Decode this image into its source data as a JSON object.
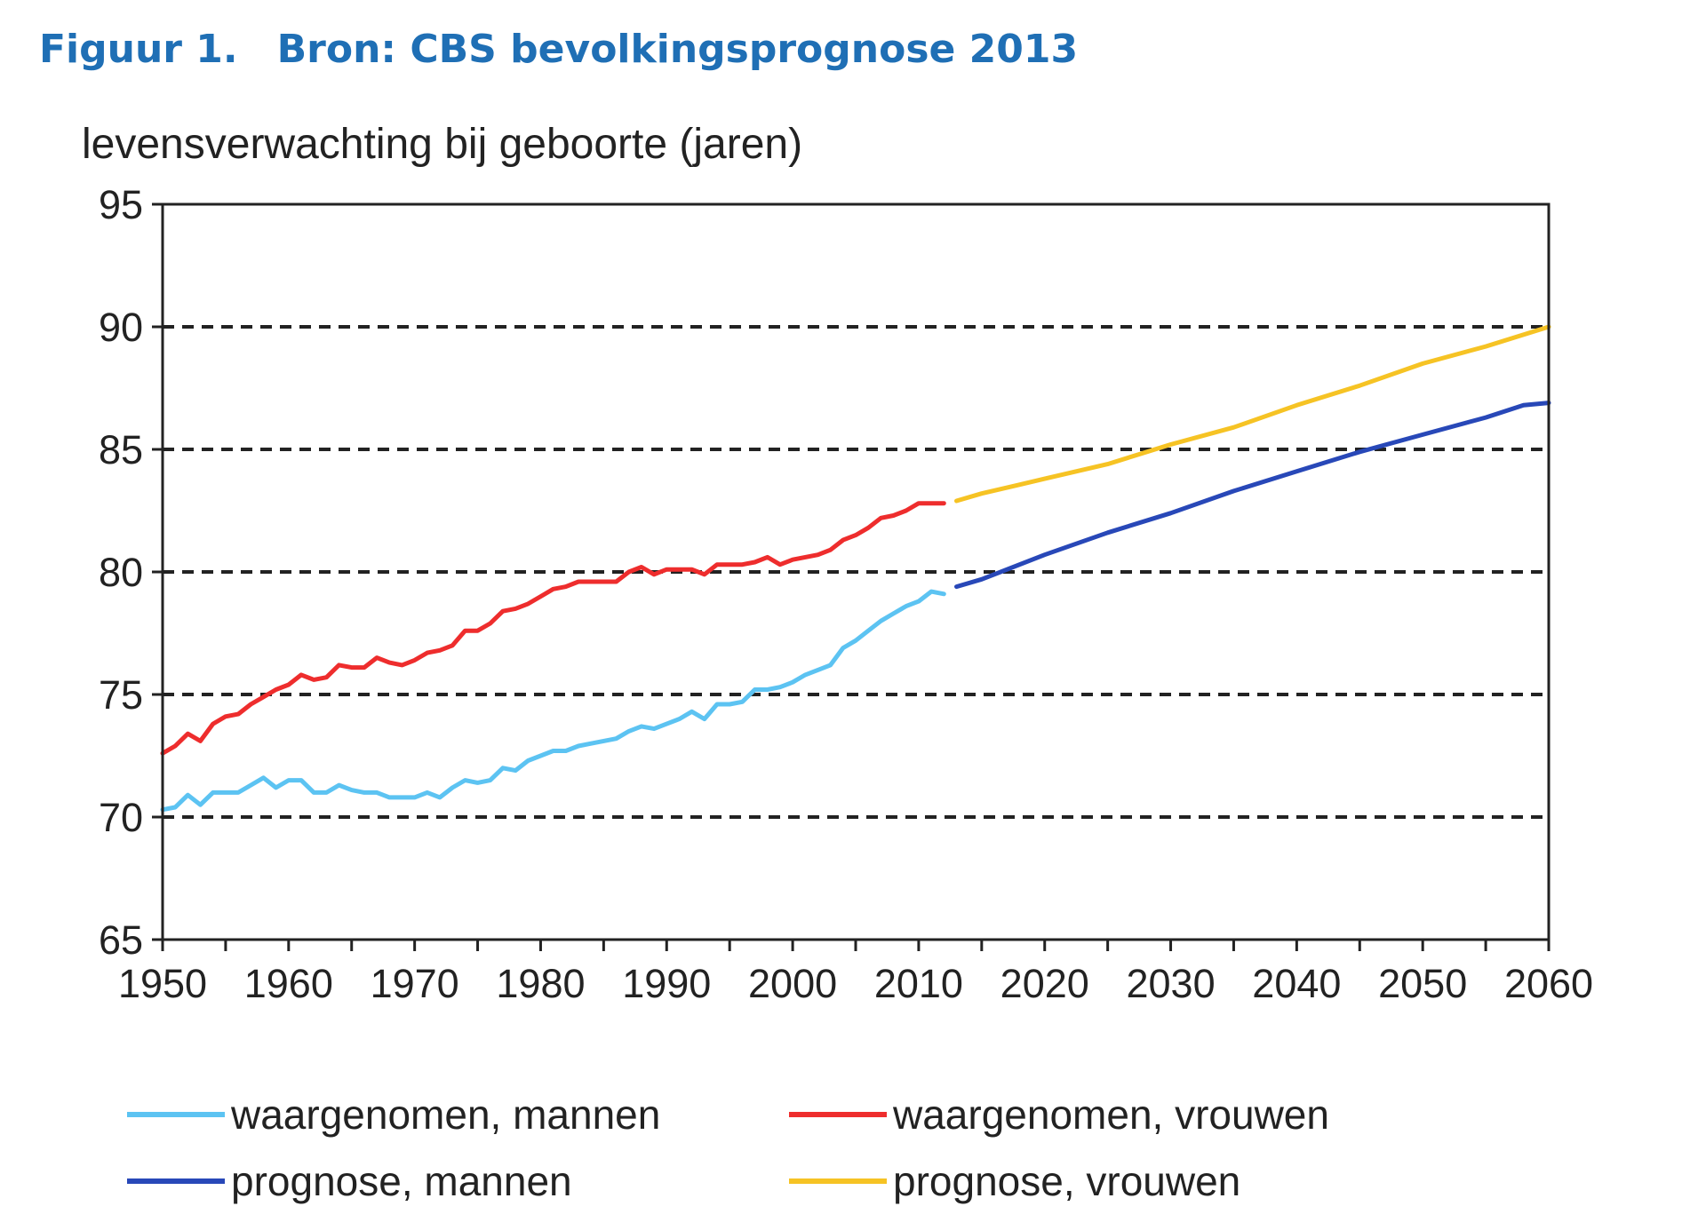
{
  "header": {
    "figure_label": "Figuur 1.",
    "source": "Bron: CBS bevolkingsprognose 2013"
  },
  "colors": {
    "header": "#1f6fb5",
    "observed_men": "#5cc3f2",
    "observed_women": "#ee2d2d",
    "forecast_men": "#2848b8",
    "forecast_women": "#f6c324",
    "grid": "#222222",
    "axis": "#222222"
  },
  "chart_data": {
    "type": "line",
    "title": "levensverwachting bij geboorte (jaren)",
    "xlabel": "",
    "ylabel": "",
    "xlim": [
      1950,
      2060
    ],
    "ylim": [
      65,
      95
    ],
    "x_ticks": [
      1950,
      1960,
      1970,
      1980,
      1990,
      2000,
      2010,
      2020,
      2030,
      2040,
      2050,
      2060
    ],
    "y_ticks": [
      65,
      70,
      75,
      80,
      85,
      90,
      95
    ],
    "y_gridlines": [
      70,
      75,
      80,
      85,
      90
    ],
    "grid": "horizontal dashed",
    "legend_position": "bottom",
    "series": [
      {
        "name": "waargenomen, mannen",
        "color": "#5cc3f2",
        "x": [
          1950,
          1951,
          1952,
          1953,
          1954,
          1955,
          1956,
          1957,
          1958,
          1959,
          1960,
          1961,
          1962,
          1963,
          1964,
          1965,
          1966,
          1967,
          1968,
          1969,
          1970,
          1971,
          1972,
          1973,
          1974,
          1975,
          1976,
          1977,
          1978,
          1979,
          1980,
          1981,
          1982,
          1983,
          1984,
          1985,
          1986,
          1987,
          1988,
          1989,
          1990,
          1991,
          1992,
          1993,
          1994,
          1995,
          1996,
          1997,
          1998,
          1999,
          2000,
          2001,
          2002,
          2003,
          2004,
          2005,
          2006,
          2007,
          2008,
          2009,
          2010,
          2011,
          2012
        ],
        "y": [
          70.3,
          70.4,
          70.9,
          70.5,
          71.0,
          71.0,
          71.0,
          71.3,
          71.6,
          71.2,
          71.5,
          71.5,
          71.0,
          71.0,
          71.3,
          71.1,
          71.0,
          71.0,
          70.8,
          70.8,
          70.8,
          71.0,
          70.8,
          71.2,
          71.5,
          71.4,
          71.5,
          72.0,
          71.9,
          72.3,
          72.5,
          72.7,
          72.7,
          72.9,
          73.0,
          73.1,
          73.2,
          73.5,
          73.7,
          73.6,
          73.8,
          74.0,
          74.3,
          74.0,
          74.6,
          74.6,
          74.7,
          75.2,
          75.2,
          75.3,
          75.5,
          75.8,
          76.0,
          76.2,
          76.9,
          77.2,
          77.6,
          78.0,
          78.3,
          78.6,
          78.8,
          79.2,
          79.1
        ]
      },
      {
        "name": "waargenomen, vrouwen",
        "color": "#ee2d2d",
        "x": [
          1950,
          1951,
          1952,
          1953,
          1954,
          1955,
          1956,
          1957,
          1958,
          1959,
          1960,
          1961,
          1962,
          1963,
          1964,
          1965,
          1966,
          1967,
          1968,
          1969,
          1970,
          1971,
          1972,
          1973,
          1974,
          1975,
          1976,
          1977,
          1978,
          1979,
          1980,
          1981,
          1982,
          1983,
          1984,
          1985,
          1986,
          1987,
          1988,
          1989,
          1990,
          1991,
          1992,
          1993,
          1994,
          1995,
          1996,
          1997,
          1998,
          1999,
          2000,
          2001,
          2002,
          2003,
          2004,
          2005,
          2006,
          2007,
          2008,
          2009,
          2010,
          2011,
          2012
        ],
        "y": [
          72.6,
          72.9,
          73.4,
          73.1,
          73.8,
          74.1,
          74.2,
          74.6,
          74.9,
          75.2,
          75.4,
          75.8,
          75.6,
          75.7,
          76.2,
          76.1,
          76.1,
          76.5,
          76.3,
          76.2,
          76.4,
          76.7,
          76.8,
          77.0,
          77.6,
          77.6,
          77.9,
          78.4,
          78.5,
          78.7,
          79.0,
          79.3,
          79.4,
          79.6,
          79.6,
          79.6,
          79.6,
          80.0,
          80.2,
          79.9,
          80.1,
          80.1,
          80.1,
          79.9,
          80.3,
          80.3,
          80.3,
          80.4,
          80.6,
          80.3,
          80.5,
          80.6,
          80.7,
          80.9,
          81.3,
          81.5,
          81.8,
          82.2,
          82.3,
          82.5,
          82.8,
          82.8,
          82.8
        ]
      },
      {
        "name": "prognose, mannen",
        "color": "#2848b8",
        "x": [
          2013,
          2015,
          2020,
          2025,
          2030,
          2035,
          2040,
          2045,
          2050,
          2055,
          2058,
          2060
        ],
        "y": [
          79.4,
          79.7,
          80.7,
          81.6,
          82.4,
          83.3,
          84.1,
          84.9,
          85.6,
          86.3,
          86.8,
          86.9
        ]
      },
      {
        "name": "prognose, vrouwen",
        "color": "#f6c324",
        "x": [
          2013,
          2015,
          2020,
          2025,
          2030,
          2035,
          2040,
          2045,
          2050,
          2055,
          2060
        ],
        "y": [
          82.9,
          83.2,
          83.8,
          84.4,
          85.2,
          85.9,
          86.8,
          87.6,
          88.5,
          89.2,
          90.0
        ]
      }
    ]
  }
}
